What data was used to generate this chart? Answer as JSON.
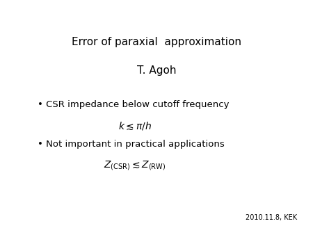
{
  "title": "Error of paraxial  approximation",
  "author": "T. Agoh",
  "bullet1": "• CSR impedance below cutoff frequency",
  "formula1": "$k \\lesssim \\pi/h$",
  "bullet2": "• Not important in practical applications",
  "formula2": "$Z_{\\mathrm{(CSR)}} \\lesssim Z_{\\mathrm{(RW)}}$",
  "footnote": "2010.11.8, KEK",
  "bg_color": "#ffffff",
  "text_color": "#000000",
  "title_fontsize": 11,
  "author_fontsize": 11,
  "bullet_fontsize": 9.5,
  "formula_fontsize": 10,
  "footnote_fontsize": 7
}
